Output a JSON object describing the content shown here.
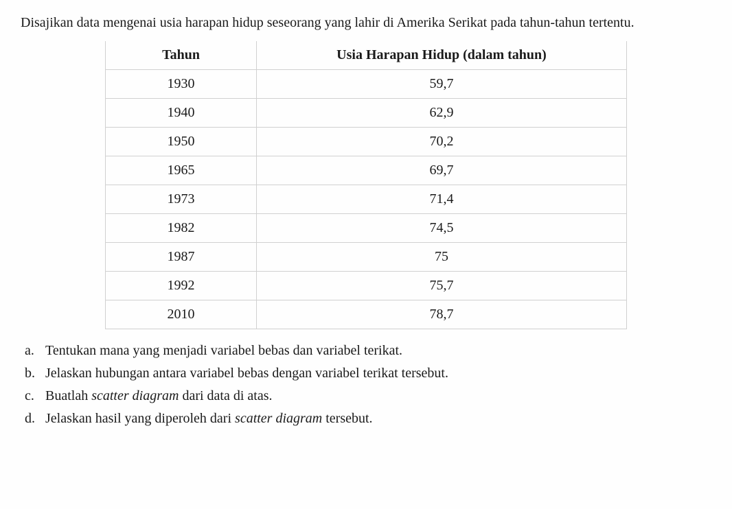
{
  "intro_text": "Disajikan data mengenai usia harapan hidup seseorang yang lahir di Amerika Serikat pada tahun-tahun tertentu.",
  "table": {
    "columns": [
      "Tahun",
      "Usia Harapan Hidup (dalam tahun)"
    ],
    "rows": [
      [
        "1930",
        "59,7"
      ],
      [
        "1940",
        "62,9"
      ],
      [
        "1950",
        "70,2"
      ],
      [
        "1965",
        "69,7"
      ],
      [
        "1973",
        "71,4"
      ],
      [
        "1982",
        "74,5"
      ],
      [
        "1987",
        "75"
      ],
      [
        "1992",
        "75,7"
      ],
      [
        "2010",
        "78,7"
      ]
    ]
  },
  "questions": [
    {
      "marker": "a.",
      "parts": [
        {
          "text": "Tentukan mana yang menjadi variabel bebas dan variabel terikat.",
          "italic": false
        }
      ]
    },
    {
      "marker": "b.",
      "parts": [
        {
          "text": "Jelaskan hubungan antara variabel bebas dengan variabel terikat tersebut.",
          "italic": false
        }
      ]
    },
    {
      "marker": "c.",
      "parts": [
        {
          "text": "Buatlah ",
          "italic": false
        },
        {
          "text": "scatter diagram",
          "italic": true
        },
        {
          "text": " dari data di atas.",
          "italic": false
        }
      ]
    },
    {
      "marker": "d.",
      "parts": [
        {
          "text": "Jelaskan hasil yang diperoleh dari ",
          "italic": false
        },
        {
          "text": "scatter diagram",
          "italic": true
        },
        {
          "text": " tersebut.",
          "italic": false
        }
      ]
    }
  ]
}
